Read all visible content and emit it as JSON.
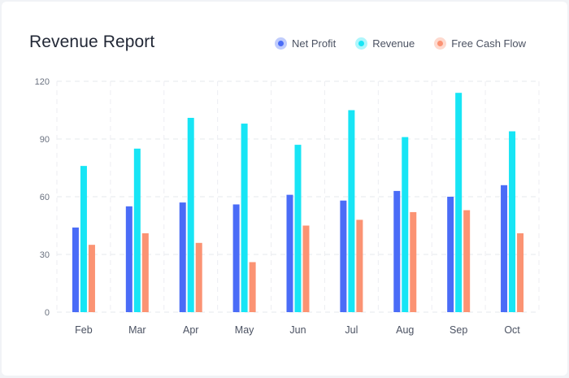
{
  "card": {
    "title": "Revenue Report"
  },
  "chart_data": {
    "type": "bar",
    "title": "Revenue Report",
    "categories": [
      "Feb",
      "Mar",
      "Apr",
      "May",
      "Jun",
      "Jul",
      "Aug",
      "Sep",
      "Oct"
    ],
    "series": [
      {
        "name": "Net Profit",
        "color": "#4a6cf7",
        "values": [
          44,
          55,
          57,
          56,
          61,
          58,
          63,
          60,
          66
        ]
      },
      {
        "name": "Revenue",
        "color": "#17e5f5",
        "values": [
          76,
          85,
          101,
          98,
          87,
          105,
          91,
          114,
          94
        ]
      },
      {
        "name": "Free Cash Flow",
        "color": "#fb9373",
        "values": [
          35,
          41,
          36,
          26,
          45,
          48,
          52,
          53,
          41
        ]
      }
    ],
    "ylim": [
      0,
      120
    ],
    "yticks": [
      "0",
      "30",
      "60",
      "90",
      "120"
    ],
    "grid": true,
    "legend_position": "top-right"
  }
}
